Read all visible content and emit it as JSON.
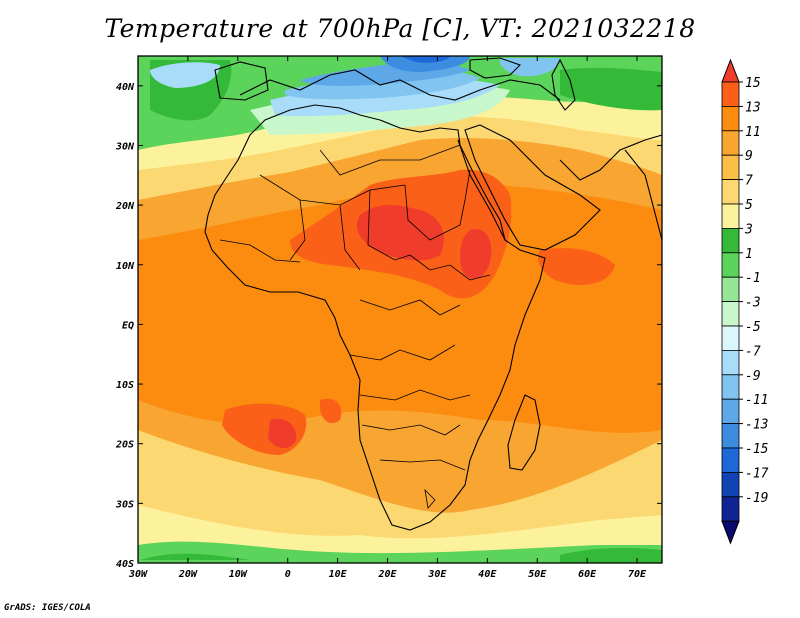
{
  "title": "Temperature at 700hPa [C], VT: 2021032218",
  "credit": "GrADS: IGES/COLA",
  "map": {
    "lon_range": [
      -30,
      75
    ],
    "lat_range": [
      -40,
      45
    ],
    "lon_ticks": [
      {
        "value": -30,
        "label": "30W"
      },
      {
        "value": -20,
        "label": "20W"
      },
      {
        "value": -10,
        "label": "10W"
      },
      {
        "value": 0,
        "label": "0"
      },
      {
        "value": 10,
        "label": "10E"
      },
      {
        "value": 20,
        "label": "20E"
      },
      {
        "value": 30,
        "label": "30E"
      },
      {
        "value": 40,
        "label": "40E"
      },
      {
        "value": 50,
        "label": "50E"
      },
      {
        "value": 60,
        "label": "60E"
      },
      {
        "value": 70,
        "label": "70E"
      }
    ],
    "lat_ticks": [
      {
        "value": 40,
        "label": "40N"
      },
      {
        "value": 30,
        "label": "30N"
      },
      {
        "value": 20,
        "label": "20N"
      },
      {
        "value": 10,
        "label": "10N"
      },
      {
        "value": 0,
        "label": "EQ"
      },
      {
        "value": -10,
        "label": "10S"
      },
      {
        "value": -20,
        "label": "20S"
      },
      {
        "value": -30,
        "label": "30S"
      },
      {
        "value": -40,
        "label": "40S"
      }
    ]
  },
  "colorbar": {
    "labels": [
      "15",
      "13",
      "11",
      "9",
      "7",
      "5",
      "3",
      "1",
      "-1",
      "-3",
      "-5",
      "-7",
      "-9",
      "-11",
      "-13",
      "-15",
      "-17",
      "-19"
    ],
    "colors": [
      "#f03c2a",
      "#fa6018",
      "#fc8c10",
      "#f9a531",
      "#fbbf48",
      "#fcd873",
      "#fdf29c",
      "#34ba38",
      "#5cd35a",
      "#96e696",
      "#c8f7cc",
      "#dcf7fc",
      "#a8dcf8",
      "#82c4f0",
      "#5ea8e8",
      "#3c8ce0",
      "#1d68d6",
      "#1044b4",
      "#0f2492",
      "#0a0a70"
    ]
  },
  "regions": [
    {
      "name": "n-africa-cool-band",
      "color": "#fdf29c"
    },
    {
      "name": "mediterranean-cold",
      "color": "#82c4f0"
    },
    {
      "name": "europe-mixed",
      "color": "#5cd35a"
    },
    {
      "name": "sahel-warm-core",
      "color": "#f03c2a"
    },
    {
      "name": "southern-ocean-green",
      "color": "#34ba38"
    }
  ]
}
